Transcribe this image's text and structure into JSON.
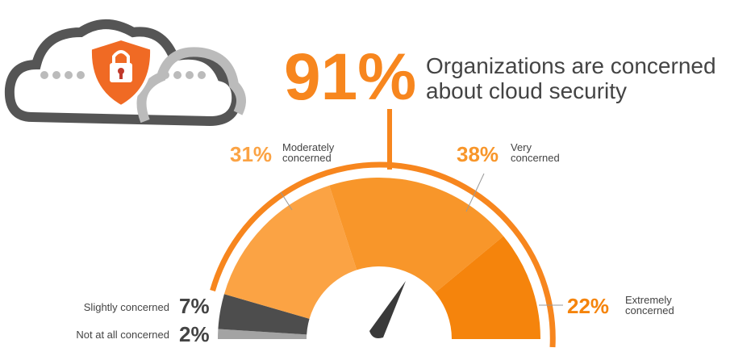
{
  "chart_data": {
    "type": "gauge",
    "highlight": {
      "value": 91,
      "label": "91%"
    },
    "title": "Organizations are concerned about cloud security",
    "categories": [
      "Not at all concerned",
      "Slightly concerned",
      "Moderately concerned",
      "Very concerned",
      "Extremely concerned"
    ],
    "values": [
      2,
      7,
      31,
      38,
      22
    ],
    "value_labels": [
      "2%",
      "7%",
      "31%",
      "38%",
      "22%"
    ],
    "colors": [
      "#a3a3a3",
      "#4d4d4d",
      "#fba344",
      "#f8962a",
      "#f5840c"
    ],
    "highlight_color": "#f7861e"
  }
}
